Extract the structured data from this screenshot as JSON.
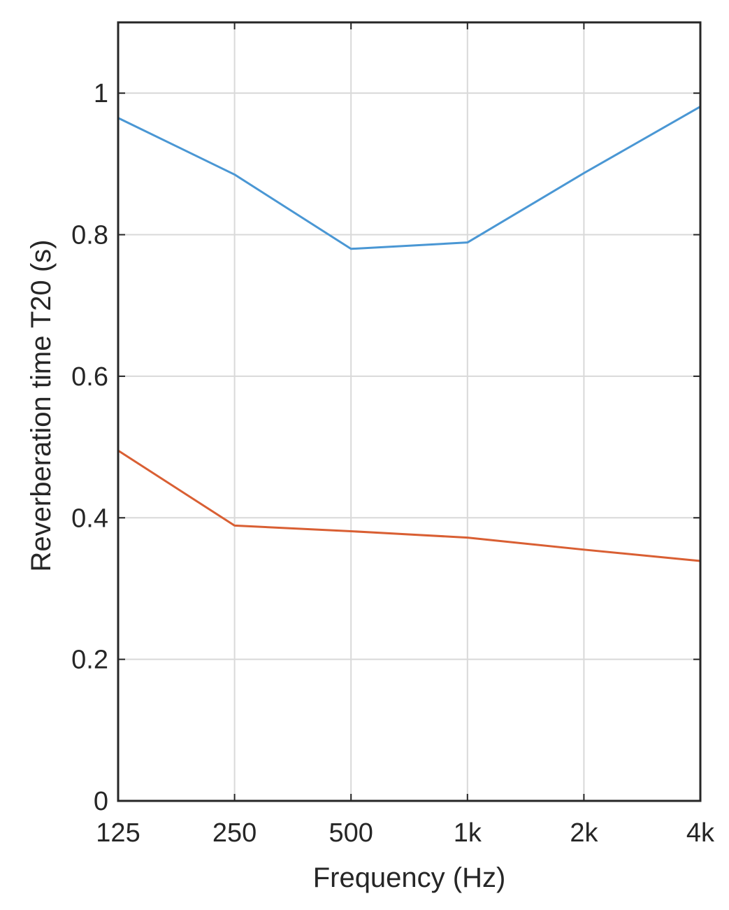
{
  "chart_data": {
    "type": "line",
    "title": "",
    "xlabel": "Frequency (Hz)",
    "ylabel": "Reverberation time T20 (s)",
    "categories": [
      "125",
      "250",
      "500",
      "1k",
      "2k",
      "4k"
    ],
    "ylim": [
      0,
      1.1
    ],
    "yticks": [
      0,
      0.2,
      0.4,
      0.6,
      0.8,
      1
    ],
    "ytick_labels": [
      "0",
      "0.2",
      "0.4",
      "0.6",
      "0.8",
      "1"
    ],
    "grid": true,
    "series": [
      {
        "values": [
          0.965,
          0.885,
          0.78,
          0.789,
          0.887,
          0.981
        ],
        "color": "#4a97d4"
      },
      {
        "values": [
          0.495,
          0.389,
          0.381,
          0.372,
          0.355,
          0.339
        ],
        "color": "#d95f33"
      }
    ]
  }
}
